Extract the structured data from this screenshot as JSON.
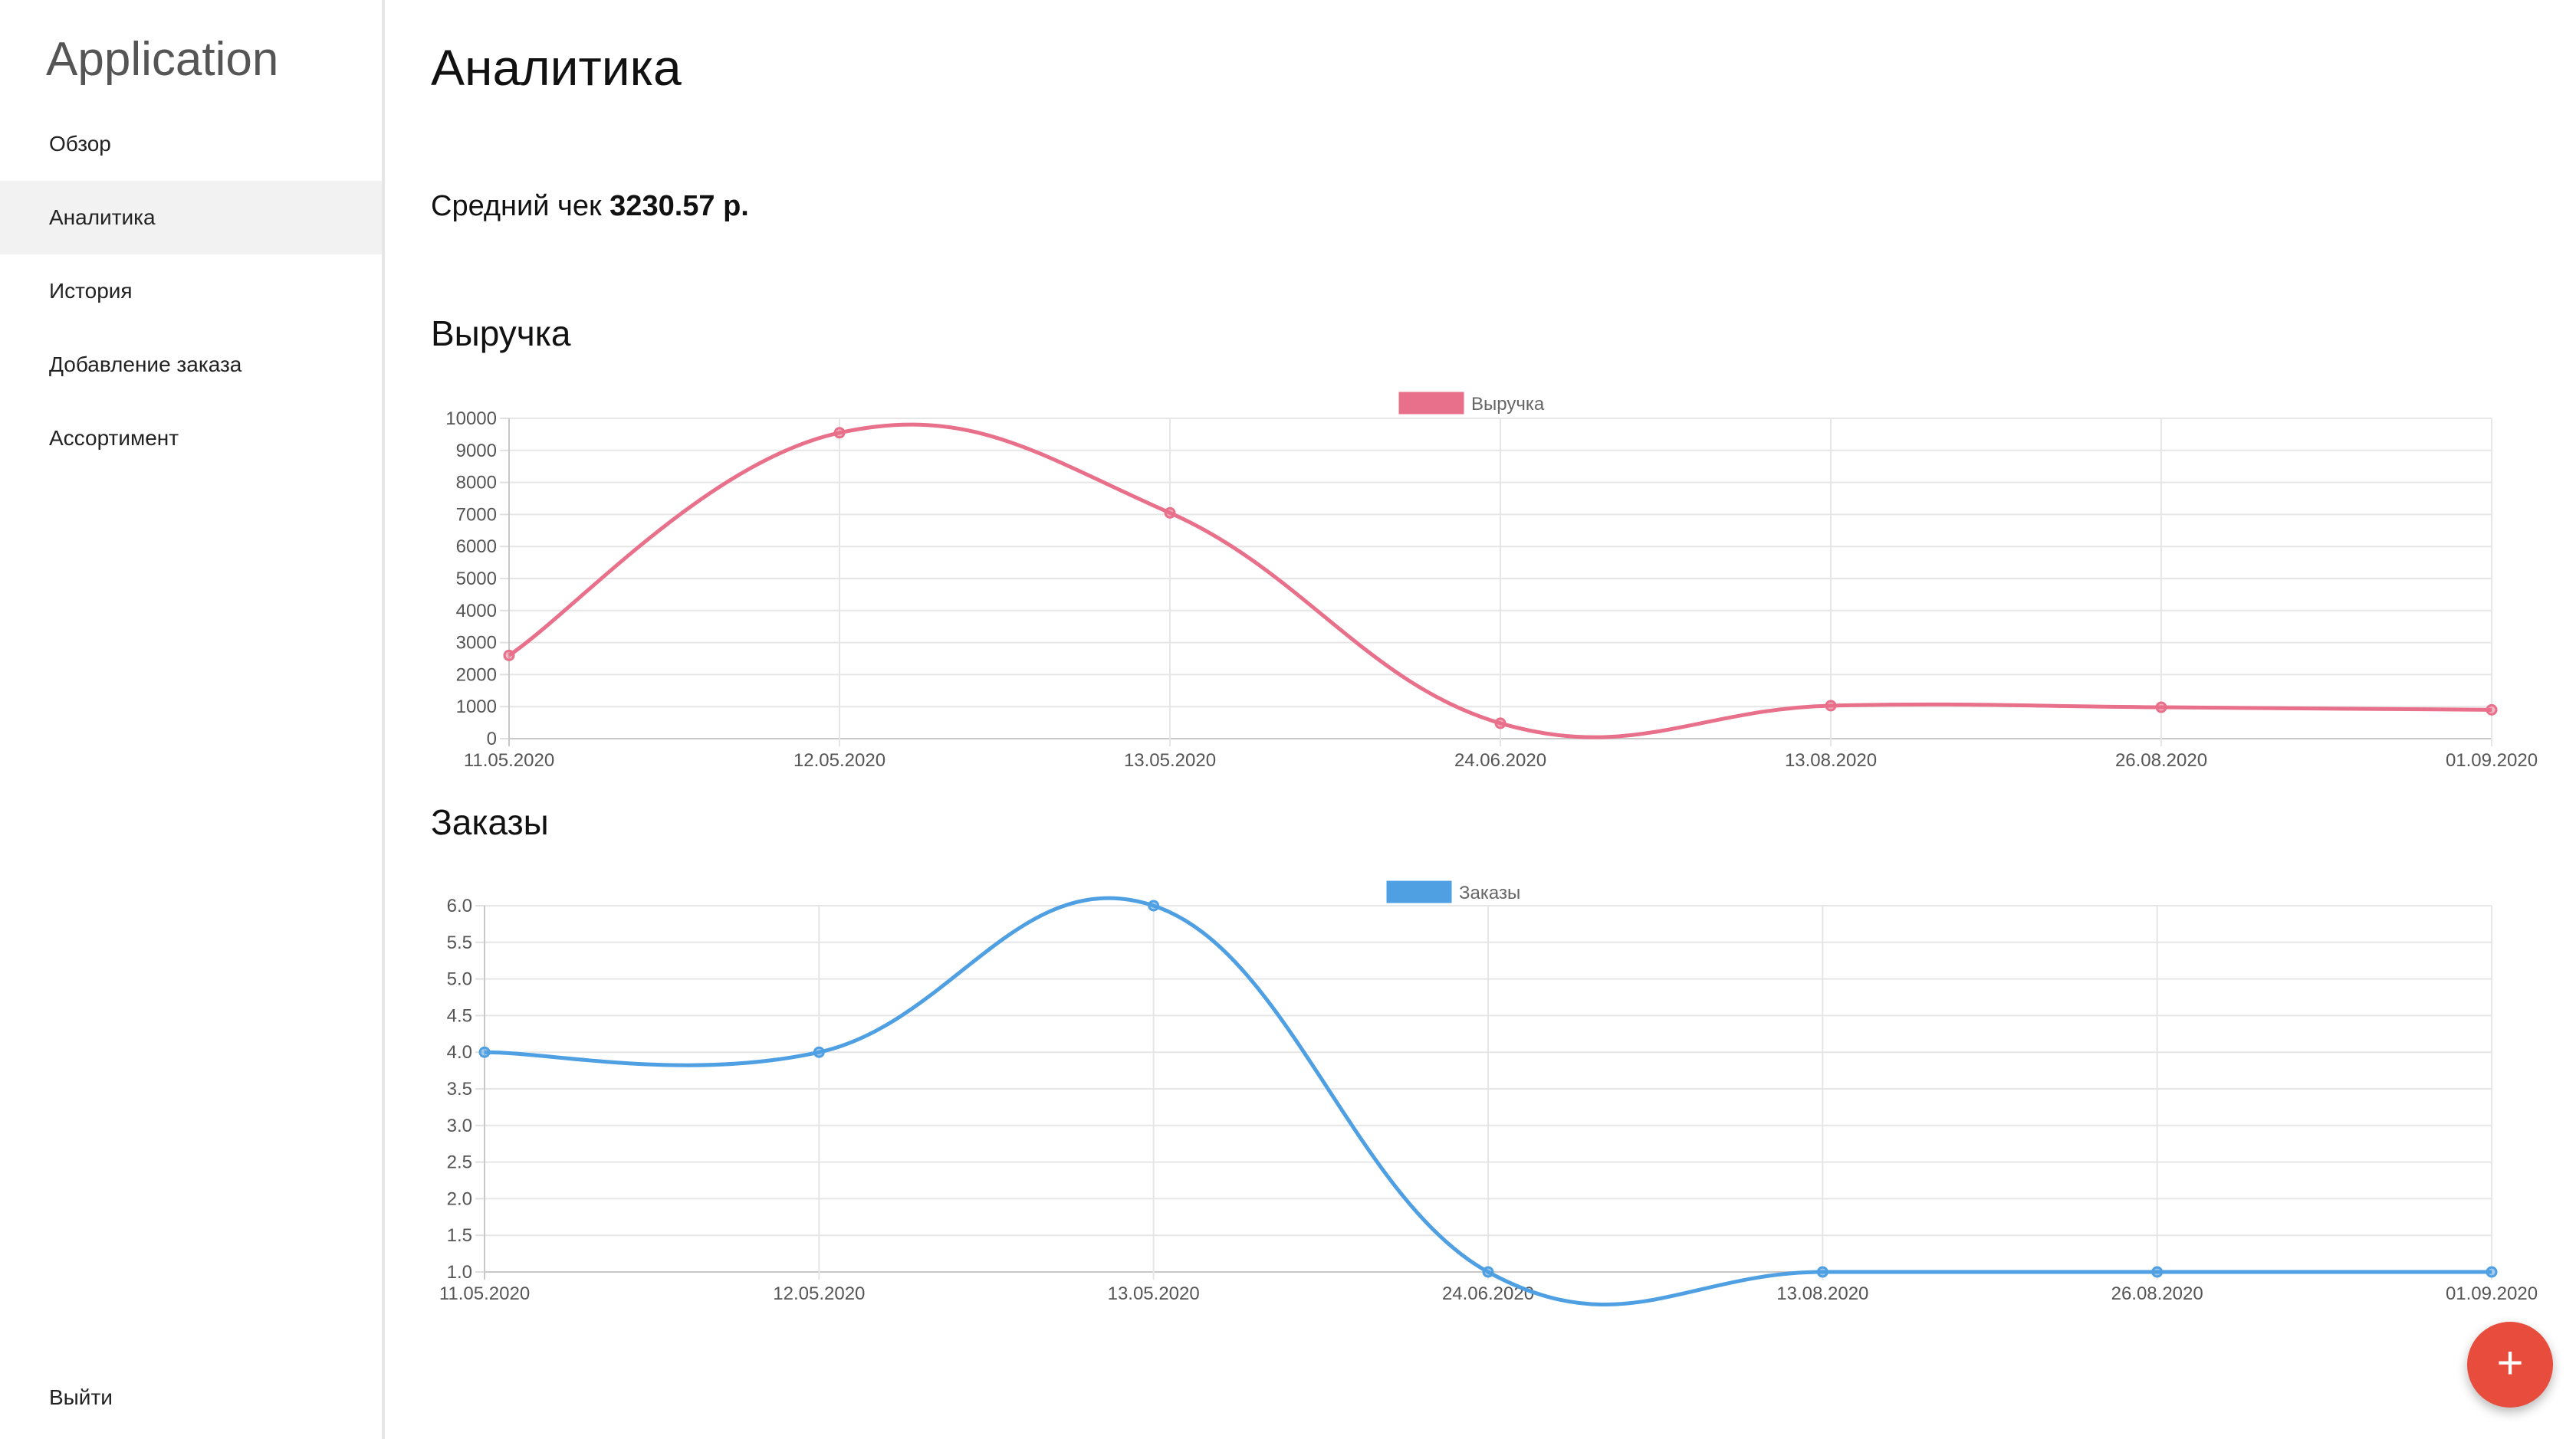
{
  "sidebar": {
    "app_title": "Application",
    "items": [
      {
        "label": "Обзор"
      },
      {
        "label": "Аналитика"
      },
      {
        "label": "История"
      },
      {
        "label": "Добавление заказа"
      },
      {
        "label": "Ассортимент"
      }
    ],
    "active_item": "Аналитика",
    "logout_label": "Выйти"
  },
  "main": {
    "title": "Аналитика",
    "avg_check_label": "Средний чек",
    "avg_check_value": "3230.57 р."
  },
  "sections": {
    "revenue_title": "Выручка",
    "orders_title": "Заказы"
  },
  "fab": {
    "icon": "plus-icon",
    "label": "+"
  },
  "chart_data": [
    {
      "type": "line",
      "title": "",
      "legend": "Выручка",
      "legend_position": "top-center",
      "color": "#e8708a",
      "categories": [
        "11.05.2020",
        "12.05.2020",
        "13.05.2020",
        "24.06.2020",
        "13.08.2020",
        "26.08.2020",
        "01.09.2020"
      ],
      "series": [
        {
          "name": "Выручка",
          "values": [
            2600,
            9550,
            7050,
            480,
            1030,
            980,
            900
          ]
        }
      ],
      "ylim": [
        0,
        10000
      ],
      "yticks": [
        0,
        1000,
        2000,
        3000,
        4000,
        5000,
        6000,
        7000,
        8000,
        9000,
        10000
      ],
      "ytick_labels": [
        "0",
        "1000",
        "2000",
        "3000",
        "4000",
        "5000",
        "6000",
        "7000",
        "8000",
        "9000",
        "10000"
      ],
      "grid": true
    },
    {
      "type": "line",
      "title": "",
      "legend": "Заказы",
      "legend_position": "top-center",
      "color": "#4f9fe3",
      "categories": [
        "11.05.2020",
        "12.05.2020",
        "13.05.2020",
        "24.06.2020",
        "13.08.2020",
        "26.08.2020",
        "01.09.2020"
      ],
      "series": [
        {
          "name": "Заказы",
          "values": [
            4,
            4,
            6,
            1,
            1,
            1,
            1
          ]
        }
      ],
      "ylim": [
        1.0,
        6.0
      ],
      "yticks": [
        1.0,
        1.5,
        2.0,
        2.5,
        3.0,
        3.5,
        4.0,
        4.5,
        5.0,
        5.5,
        6.0
      ],
      "ytick_labels": [
        "1.0",
        "1.5",
        "2.0",
        "2.5",
        "3.0",
        "3.5",
        "4.0",
        "4.5",
        "5.0",
        "5.5",
        "6.0"
      ],
      "grid": true
    }
  ]
}
